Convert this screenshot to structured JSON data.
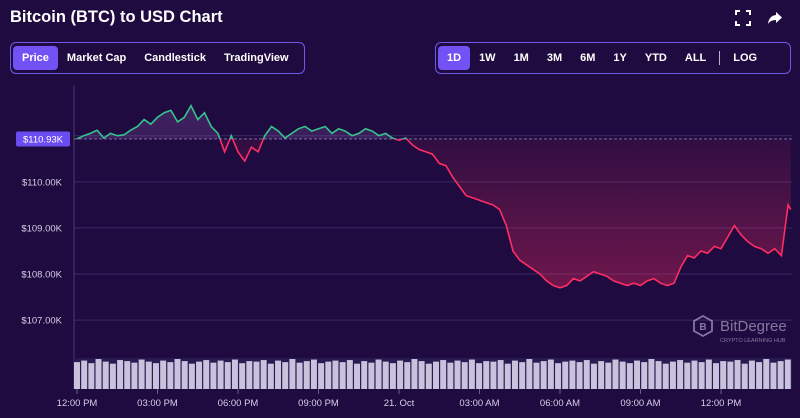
{
  "header": {
    "title": "Bitcoin (BTC) to USD Chart",
    "icons": [
      "fullscreen-icon",
      "share-icon"
    ]
  },
  "view_tabs": [
    {
      "label": "Price",
      "active": true
    },
    {
      "label": "Market Cap",
      "active": false
    },
    {
      "label": "Candlestick",
      "active": false
    },
    {
      "label": "TradingView",
      "active": false
    }
  ],
  "range_tabs": [
    {
      "label": "1D",
      "active": true
    },
    {
      "label": "1W",
      "active": false
    },
    {
      "label": "1M",
      "active": false
    },
    {
      "label": "3M",
      "active": false
    },
    {
      "label": "6M",
      "active": false
    },
    {
      "label": "1Y",
      "active": false
    },
    {
      "label": "YTD",
      "active": false
    },
    {
      "label": "ALL",
      "active": false
    }
  ],
  "scale_tab": {
    "label": "LOG",
    "active": false
  },
  "watermark": {
    "name": "BitDegree",
    "tagline": "CRYPTO LEARNING HUB"
  },
  "colors": {
    "background": "#1f0b3f",
    "up": "#35c48d",
    "down": "#ff2d63",
    "accent": "#7352f5",
    "price_label": "#6a4df0"
  },
  "chart_data": {
    "type": "line",
    "title": "",
    "xlabel": "",
    "ylabel": "",
    "grid": true,
    "baseline": 110930,
    "current_price_label": "$110.93K",
    "ylim": [
      106200,
      112100
    ],
    "yticks": [
      {
        "value": 111000,
        "label": "$111.00K"
      },
      {
        "value": 110000,
        "label": "$110.00K"
      },
      {
        "value": 109000,
        "label": "$109.00K"
      },
      {
        "value": 108000,
        "label": "$108.00K"
      },
      {
        "value": 107000,
        "label": "$107.00K"
      }
    ],
    "xticks": [
      {
        "h": 0,
        "label": "12:00 PM"
      },
      {
        "h": 3,
        "label": "03:00 PM"
      },
      {
        "h": 6,
        "label": "06:00 PM"
      },
      {
        "h": 9,
        "label": "09:00 PM"
      },
      {
        "h": 12,
        "label": "21. Oct"
      },
      {
        "h": 15,
        "label": "03:00 AM"
      },
      {
        "h": 18,
        "label": "06:00 AM"
      },
      {
        "h": 21,
        "label": "09:00 AM"
      },
      {
        "h": 24,
        "label": "12:00 PM"
      }
    ],
    "x_hours_range": [
      0,
      26.6
    ],
    "series": [
      {
        "points": [
          [
            0,
            110930
          ],
          [
            0.25,
            111000
          ],
          [
            0.5,
            111050
          ],
          [
            0.75,
            111120
          ],
          [
            1,
            110950
          ],
          [
            1.25,
            111050
          ],
          [
            1.5,
            111000
          ],
          [
            1.75,
            111020
          ],
          [
            2,
            111120
          ],
          [
            2.25,
            111200
          ],
          [
            2.5,
            111350
          ],
          [
            2.75,
            111250
          ],
          [
            3,
            111400
          ],
          [
            3.25,
            111500
          ],
          [
            3.5,
            111550
          ],
          [
            3.75,
            111300
          ],
          [
            4,
            111400
          ],
          [
            4.25,
            111650
          ],
          [
            4.5,
            111350
          ],
          [
            4.75,
            111500
          ],
          [
            5,
            111200
          ],
          [
            5.25,
            111050
          ],
          [
            5.5,
            110650
          ],
          [
            5.75,
            111000
          ],
          [
            6,
            110650
          ],
          [
            6.25,
            110450
          ],
          [
            6.5,
            110750
          ],
          [
            6.75,
            110650
          ],
          [
            7,
            111000
          ],
          [
            7.25,
            111200
          ],
          [
            7.5,
            111100
          ],
          [
            7.75,
            110950
          ],
          [
            8,
            111050
          ],
          [
            8.25,
            111150
          ],
          [
            8.5,
            111200
          ],
          [
            8.75,
            111100
          ],
          [
            9,
            111150
          ],
          [
            9.25,
            111200
          ],
          [
            9.5,
            111050
          ],
          [
            9.75,
            111150
          ],
          [
            10,
            111100
          ],
          [
            10.25,
            111000
          ],
          [
            10.5,
            111050
          ],
          [
            10.75,
            111150
          ],
          [
            11,
            111100
          ],
          [
            11.25,
            111000
          ],
          [
            11.5,
            111050
          ],
          [
            11.75,
            110950
          ],
          [
            12,
            110900
          ],
          [
            12.25,
            110950
          ],
          [
            12.5,
            110800
          ],
          [
            12.75,
            110700
          ],
          [
            13,
            110650
          ],
          [
            13.25,
            110600
          ],
          [
            13.5,
            110400
          ],
          [
            13.75,
            110350
          ],
          [
            14,
            110100
          ],
          [
            14.25,
            109900
          ],
          [
            14.5,
            109700
          ],
          [
            14.75,
            109650
          ],
          [
            15,
            109600
          ],
          [
            15.25,
            109550
          ],
          [
            15.5,
            109500
          ],
          [
            15.75,
            109400
          ],
          [
            16,
            109050
          ],
          [
            16.25,
            108500
          ],
          [
            16.5,
            108300
          ],
          [
            16.75,
            108200
          ],
          [
            17,
            108100
          ],
          [
            17.25,
            108000
          ],
          [
            17.5,
            107850
          ],
          [
            17.75,
            107750
          ],
          [
            18,
            107700
          ],
          [
            18.25,
            107750
          ],
          [
            18.5,
            107900
          ],
          [
            18.75,
            107850
          ],
          [
            19,
            107950
          ],
          [
            19.25,
            108050
          ],
          [
            19.5,
            108000
          ],
          [
            19.75,
            107950
          ],
          [
            20,
            107850
          ],
          [
            20.25,
            107800
          ],
          [
            20.5,
            107750
          ],
          [
            20.75,
            107800
          ],
          [
            21,
            107750
          ],
          [
            21.25,
            107850
          ],
          [
            21.5,
            107900
          ],
          [
            21.75,
            107800
          ],
          [
            22,
            107750
          ],
          [
            22.25,
            107800
          ],
          [
            22.5,
            108150
          ],
          [
            22.75,
            108400
          ],
          [
            23,
            108350
          ],
          [
            23.25,
            108500
          ],
          [
            23.5,
            108450
          ],
          [
            23.75,
            108600
          ],
          [
            24,
            108550
          ],
          [
            24.25,
            108800
          ],
          [
            24.5,
            109050
          ],
          [
            24.75,
            108850
          ],
          [
            25,
            108700
          ],
          [
            25.25,
            108600
          ],
          [
            25.5,
            108550
          ],
          [
            25.75,
            108450
          ],
          [
            26,
            108550
          ],
          [
            26.25,
            108400
          ],
          [
            26.5,
            109500
          ],
          [
            26.6,
            109400
          ]
        ]
      }
    ],
    "volume": [
      52,
      55,
      50,
      58,
      53,
      49,
      56,
      54,
      51,
      57,
      53,
      50,
      55,
      52,
      58,
      54,
      49,
      53,
      56,
      51,
      55,
      52,
      57,
      50,
      54,
      53,
      56,
      49,
      55,
      52,
      58,
      51,
      54,
      57,
      50,
      53,
      55,
      52,
      56,
      49,
      54,
      51,
      57,
      53,
      50,
      55,
      52,
      58,
      54,
      49,
      53,
      56,
      51,
      55,
      52,
      57,
      50,
      54,
      53,
      56,
      49,
      55,
      52,
      58,
      51,
      54,
      57,
      50,
      53,
      55,
      52,
      56,
      49,
      54,
      51,
      57,
      53,
      50,
      55,
      52,
      58,
      54,
      49,
      53,
      56,
      51,
      55,
      52,
      57,
      50,
      54,
      53,
      56,
      49,
      55,
      52,
      58,
      51,
      54,
      57
    ]
  }
}
